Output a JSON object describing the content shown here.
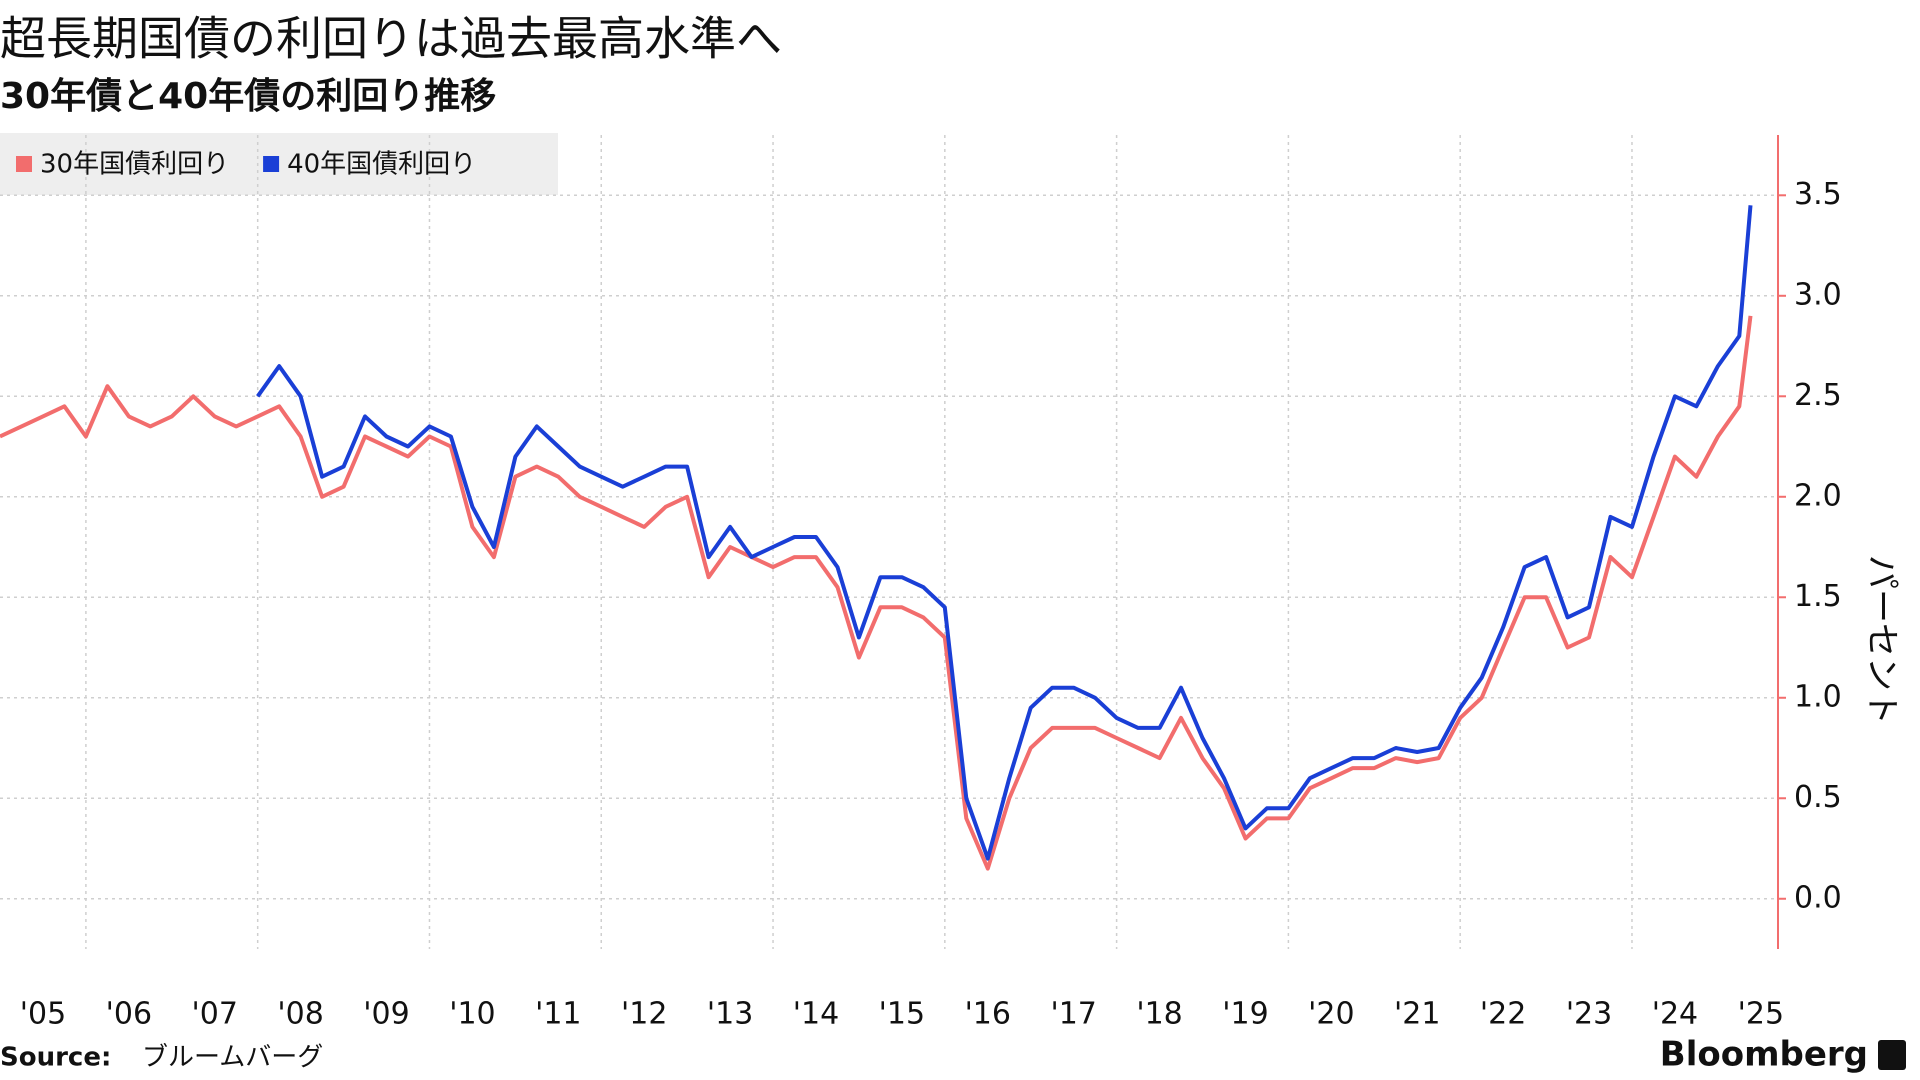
{
  "chart_data": {
    "type": "line",
    "title": "超長期国債の利回りは過去最高水準へ",
    "subtitle": "30年債と40年債の利回り推移",
    "y_label": "パーセント",
    "source_label": "Source:",
    "source": "ブルームバーグ",
    "brand": "Bloomberg",
    "x": [
      2005,
      2005.25,
      2005.5,
      2005.75,
      2006,
      2006.25,
      2006.5,
      2006.75,
      2007,
      2007.25,
      2007.5,
      2007.75,
      2008,
      2008.25,
      2008.5,
      2008.75,
      2009,
      2009.25,
      2009.5,
      2009.75,
      2010,
      2010.25,
      2010.5,
      2010.75,
      2011,
      2011.25,
      2011.5,
      2011.75,
      2012,
      2012.25,
      2012.5,
      2012.75,
      2013,
      2013.25,
      2013.5,
      2013.75,
      2014,
      2014.25,
      2014.5,
      2014.75,
      2015,
      2015.25,
      2015.5,
      2015.75,
      2016,
      2016.25,
      2016.5,
      2016.75,
      2017,
      2017.25,
      2017.5,
      2017.75,
      2018,
      2018.25,
      2018.5,
      2018.75,
      2019,
      2019.25,
      2019.5,
      2019.75,
      2020,
      2020.25,
      2020.5,
      2020.75,
      2021,
      2021.25,
      2021.5,
      2021.75,
      2022,
      2022.25,
      2022.5,
      2022.75,
      2023,
      2023.25,
      2023.5,
      2023.75,
      2024,
      2024.25,
      2024.5,
      2024.75,
      2025,
      2025.25,
      2025.38
    ],
    "series": [
      {
        "name": "30年国債利回り",
        "color": "#f26d6d",
        "values": [
          2.3,
          2.35,
          2.4,
          2.45,
          2.3,
          2.55,
          2.4,
          2.35,
          2.4,
          2.5,
          2.4,
          2.35,
          2.4,
          2.45,
          2.3,
          2.0,
          2.05,
          2.3,
          2.25,
          2.2,
          2.3,
          2.25,
          1.85,
          1.7,
          2.1,
          2.15,
          2.1,
          2.0,
          1.95,
          1.9,
          1.85,
          1.95,
          2.0,
          1.6,
          1.75,
          1.7,
          1.65,
          1.7,
          1.7,
          1.55,
          1.2,
          1.45,
          1.45,
          1.4,
          1.3,
          0.4,
          0.15,
          0.5,
          0.75,
          0.85,
          0.85,
          0.85,
          0.8,
          0.75,
          0.7,
          0.9,
          0.7,
          0.55,
          0.3,
          0.4,
          0.4,
          0.55,
          0.6,
          0.65,
          0.65,
          0.7,
          0.68,
          0.7,
          0.9,
          1.0,
          1.25,
          1.5,
          1.5,
          1.25,
          1.3,
          1.7,
          1.6,
          1.9,
          2.2,
          2.1,
          2.3,
          2.45,
          2.9
        ]
      },
      {
        "name": "40年国債利回り",
        "color": "#1a3fd6",
        "values": [
          null,
          null,
          null,
          null,
          null,
          null,
          null,
          null,
          null,
          null,
          null,
          null,
          2.5,
          2.65,
          2.5,
          2.1,
          2.15,
          2.4,
          2.3,
          2.25,
          2.35,
          2.3,
          1.95,
          1.75,
          2.2,
          2.35,
          2.25,
          2.15,
          2.1,
          2.05,
          2.1,
          2.15,
          2.15,
          1.7,
          1.85,
          1.7,
          1.75,
          1.8,
          1.8,
          1.65,
          1.3,
          1.6,
          1.6,
          1.55,
          1.45,
          0.5,
          0.2,
          0.6,
          0.95,
          1.05,
          1.05,
          1.0,
          0.9,
          0.85,
          0.85,
          1.05,
          0.8,
          0.6,
          0.35,
          0.45,
          0.45,
          0.6,
          0.65,
          0.7,
          0.7,
          0.75,
          0.73,
          0.75,
          0.95,
          1.1,
          1.35,
          1.65,
          1.7,
          1.4,
          1.45,
          1.9,
          1.85,
          2.2,
          2.5,
          2.45,
          2.65,
          2.8,
          3.45
        ]
      }
    ],
    "xlim": [
      2005,
      2025.7
    ],
    "xticks": [
      {
        "value": 2005,
        "label": "'05"
      },
      {
        "value": 2006,
        "label": "'06"
      },
      {
        "value": 2007,
        "label": "'07"
      },
      {
        "value": 2008,
        "label": "'08"
      },
      {
        "value": 2009,
        "label": "'09"
      },
      {
        "value": 2010,
        "label": "'10"
      },
      {
        "value": 2011,
        "label": "'11"
      },
      {
        "value": 2012,
        "label": "'12"
      },
      {
        "value": 2013,
        "label": "'13"
      },
      {
        "value": 2014,
        "label": "'14"
      },
      {
        "value": 2015,
        "label": "'15"
      },
      {
        "value": 2016,
        "label": "'16"
      },
      {
        "value": 2017,
        "label": "'17"
      },
      {
        "value": 2018,
        "label": "'18"
      },
      {
        "value": 2019,
        "label": "'19"
      },
      {
        "value": 2020,
        "label": "'20"
      },
      {
        "value": 2021,
        "label": "'21"
      },
      {
        "value": 2022,
        "label": "'22"
      },
      {
        "value": 2023,
        "label": "'23"
      },
      {
        "value": 2024,
        "label": "'24"
      },
      {
        "value": 2025,
        "label": "'25"
      }
    ],
    "xgrid": [
      2006,
      2008,
      2010,
      2012,
      2014,
      2016,
      2018,
      2020,
      2022,
      2024
    ],
    "ylim": [
      -0.25,
      3.8
    ],
    "yticks": [
      {
        "value": 0,
        "label": "0.0"
      },
      0.5,
      {
        "value": 1,
        "label": "1.0"
      },
      1.5,
      {
        "value": 2,
        "label": "2.0"
      },
      2.5,
      {
        "value": 3,
        "label": "3.0"
      },
      3.5
    ],
    "grid": true,
    "legend": "top-left"
  }
}
